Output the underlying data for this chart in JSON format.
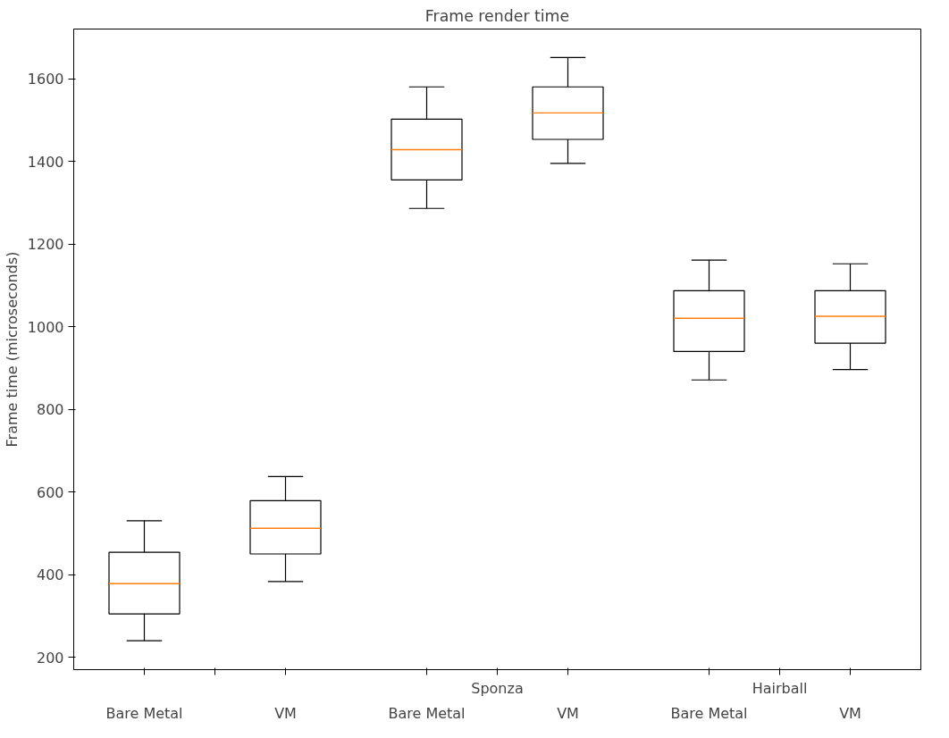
{
  "chart_data": {
    "type": "box",
    "title": "Frame render time",
    "ylabel": "Frame time (microseconds)",
    "categories": [
      "Bare Metal",
      "VM",
      "Bare Metal",
      "VM",
      "Bare Metal",
      "VM"
    ],
    "annotations": [
      null,
      "Sponza",
      "Hairball"
    ],
    "ylim": [
      170,
      1720
    ],
    "yticks": [
      200,
      400,
      600,
      800,
      1000,
      1200,
      1400,
      1600
    ],
    "grid": false,
    "series": [
      {
        "color": "#000000",
        "boxes": [
          {
            "low": 240,
            "q1": 305,
            "median": 378,
            "q3": 454,
            "high": 530
          },
          {
            "low": 383,
            "q1": 450,
            "median": 512,
            "q3": 579,
            "high": 637
          },
          {
            "low": 1286,
            "q1": 1355,
            "median": 1428,
            "q3": 1502,
            "high": 1580
          },
          {
            "low": 1395,
            "q1": 1453,
            "median": 1517,
            "q3": 1580,
            "high": 1651
          },
          {
            "low": 871,
            "q1": 940,
            "median": 1020,
            "q3": 1087,
            "high": 1161
          },
          {
            "low": 896,
            "q1": 960,
            "median": 1025,
            "q3": 1087,
            "high": 1152
          }
        ]
      }
    ]
  }
}
